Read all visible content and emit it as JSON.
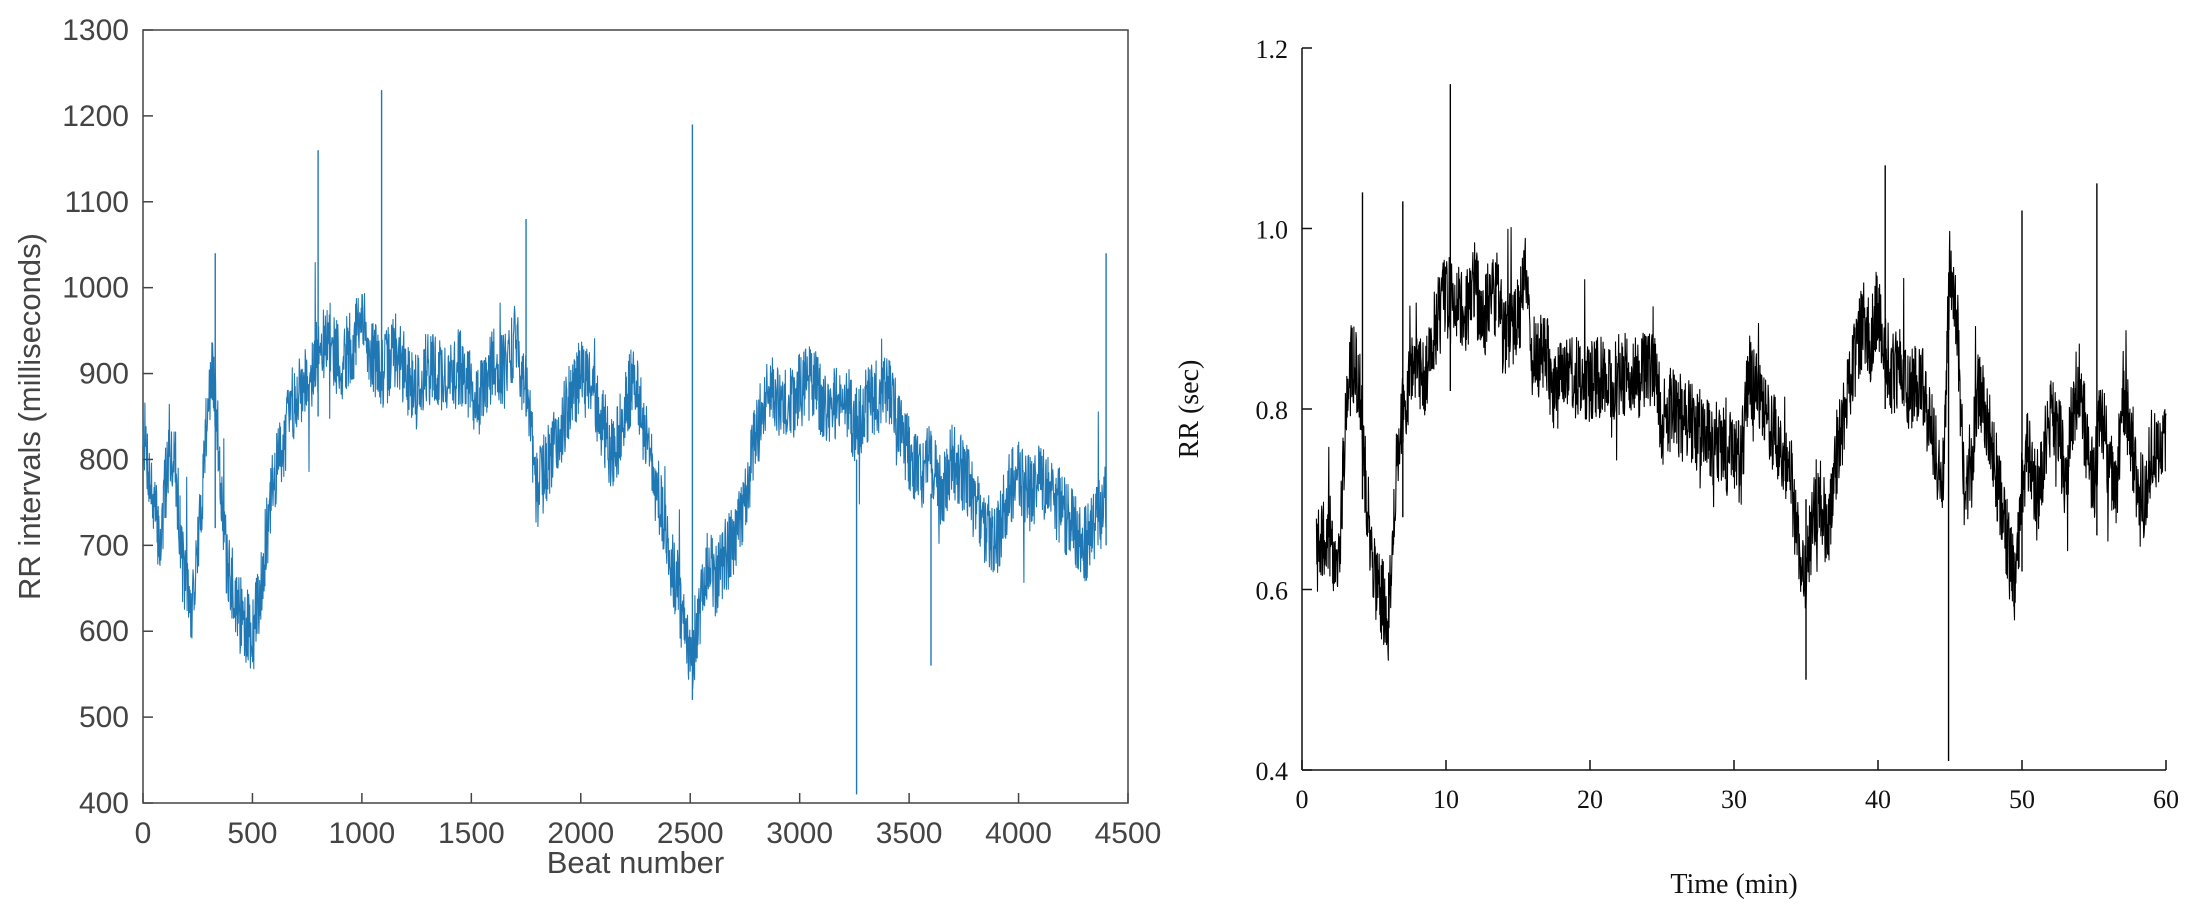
{
  "chart_data": [
    {
      "type": "line",
      "title": "",
      "xlabel": "Beat number",
      "ylabel": "RR intervals (milliseconds)",
      "xlim": [
        0,
        4500
      ],
      "ylim": [
        400,
        1300
      ],
      "xticks": [
        "0",
        "500",
        "1000",
        "1500",
        "2000",
        "2500",
        "3000",
        "3500",
        "4000",
        "4500"
      ],
      "yticks": [
        "400",
        "500",
        "600",
        "700",
        "800",
        "900",
        "1000",
        "1100",
        "1200",
        "1300"
      ],
      "grid": false,
      "line_color": "#1f77b4",
      "series": [
        {
          "x": [
            0,
            40,
            80,
            120,
            150,
            180,
            220,
            260,
            290,
            320,
            350,
            380,
            420,
            460,
            500,
            530,
            560,
            600,
            650,
            700,
            760,
            800,
            850,
            900,
            950,
            1000,
            1050,
            1100,
            1150,
            1200,
            1250,
            1300,
            1350,
            1400,
            1450,
            1500,
            1550,
            1600,
            1650,
            1700,
            1750,
            1800,
            1850,
            1900,
            1950,
            2000,
            2050,
            2100,
            2150,
            2200,
            2250,
            2300,
            2350,
            2400,
            2450,
            2480,
            2510,
            2540,
            2580,
            2620,
            2660,
            2700,
            2740,
            2780,
            2820,
            2860,
            2900,
            2950,
            3000,
            3050,
            3100,
            3150,
            3200,
            3250,
            3300,
            3350,
            3400,
            3450,
            3500,
            3550,
            3600,
            3650,
            3700,
            3750,
            3800,
            3850,
            3900,
            3950,
            4000,
            4050,
            4100,
            4150,
            4200,
            4250,
            4300,
            4350,
            4400
          ],
          "values": [
            840,
            760,
            700,
            820,
            790,
            680,
            620,
            720,
            850,
            900,
            800,
            680,
            640,
            610,
            590,
            640,
            700,
            780,
            830,
            880,
            900,
            920,
            940,
            910,
            930,
            960,
            920,
            900,
            930,
            900,
            880,
            910,
            900,
            890,
            910,
            880,
            870,
            920,
            900,
            940,
            880,
            760,
            800,
            830,
            870,
            900,
            880,
            840,
            800,
            860,
            900,
            820,
            760,
            700,
            640,
            580,
            560,
            610,
            680,
            660,
            690,
            700,
            740,
            800,
            850,
            880,
            870,
            860,
            880,
            890,
            870,
            860,
            880,
            840,
            860,
            870,
            880,
            840,
            810,
            780,
            800,
            760,
            800,
            780,
            750,
            720,
            700,
            760,
            780,
            760,
            780,
            760,
            740,
            720,
            700,
            720,
            760
          ]
        }
      ],
      "spikes": [
        {
          "x": 330,
          "values": [
            1040,
            720
          ]
        },
        {
          "x": 800,
          "values": [
            1160,
            850
          ]
        },
        {
          "x": 1090,
          "values": [
            1230,
            880
          ]
        },
        {
          "x": 1750,
          "values": [
            1080,
            850
          ]
        },
        {
          "x": 2510,
          "values": [
            1190,
            520
          ]
        },
        {
          "x": 3260,
          "values": [
            410,
            800
          ]
        },
        {
          "x": 3600,
          "values": [
            560,
            760
          ]
        },
        {
          "x": 4400,
          "values": [
            1040,
            700
          ]
        }
      ]
    },
    {
      "type": "line",
      "title": "",
      "xlabel": "Time (min)",
      "ylabel": "RR (sec)",
      "xlim": [
        0,
        60
      ],
      "ylim": [
        0.4,
        1.2
      ],
      "xticks": [
        "0",
        "10",
        "20",
        "30",
        "40",
        "50",
        "60"
      ],
      "yticks": [
        "0.4",
        "0.6",
        "0.8",
        "1.0",
        "1.2"
      ],
      "grid": false,
      "line_color": "#000000",
      "series": [
        {
          "x": [
            1.0,
            2.0,
            2.5,
            3.0,
            3.5,
            4.0,
            4.5,
            5.0,
            5.5,
            6.0,
            6.5,
            7.0,
            7.5,
            8.0,
            8.5,
            9.0,
            9.5,
            10.0,
            10.5,
            11.0,
            11.5,
            12.0,
            12.5,
            13.0,
            13.5,
            14.0,
            15.0,
            15.5,
            16.0,
            17.0,
            17.5,
            18.0,
            24.5,
            25.0,
            25.5,
            30.5,
            31.0,
            33.5,
            34.0,
            34.5,
            35.0,
            35.5,
            36.0,
            36.5,
            37.0,
            37.5,
            38.0,
            38.5,
            39.0,
            39.5,
            40.0,
            40.5,
            41.0,
            41.5,
            42.0,
            43.0,
            44.0,
            44.5,
            45.0,
            45.5,
            46.0,
            46.5,
            47.0,
            47.5,
            49.5,
            50.0,
            50.5,
            51.0,
            51.5,
            52.0,
            52.5,
            53.0,
            53.5,
            54.0,
            54.5,
            55.0,
            55.5,
            56.0,
            56.5,
            57.0,
            57.5,
            58.0,
            58.5,
            59.0,
            59.5,
            60.0
          ],
          "values": [
            0.64,
            0.66,
            0.62,
            0.78,
            0.86,
            0.82,
            0.7,
            0.62,
            0.59,
            0.58,
            0.72,
            0.8,
            0.84,
            0.86,
            0.82,
            0.88,
            0.9,
            0.93,
            0.91,
            0.92,
            0.9,
            0.94,
            0.89,
            0.92,
            0.93,
            0.88,
            0.9,
            0.95,
            0.86,
            0.86,
            0.82,
            0.83,
            0.84,
            0.78,
            0.8,
            0.74,
            0.84,
            0.75,
            0.72,
            0.64,
            0.62,
            0.68,
            0.7,
            0.66,
            0.74,
            0.78,
            0.82,
            0.86,
            0.9,
            0.88,
            0.92,
            0.86,
            0.84,
            0.85,
            0.82,
            0.83,
            0.75,
            0.72,
            0.96,
            0.9,
            0.7,
            0.75,
            0.83,
            0.8,
            0.6,
            0.72,
            0.76,
            0.7,
            0.75,
            0.8,
            0.78,
            0.72,
            0.79,
            0.83,
            0.76,
            0.72,
            0.8,
            0.74,
            0.7,
            0.82,
            0.78,
            0.72,
            0.7,
            0.76,
            0.74,
            0.76
          ]
        }
      ],
      "spikes": [
        {
          "x": 4.2,
          "values": [
            1.04,
            0.7
          ]
        },
        {
          "x": 7.0,
          "values": [
            1.03,
            0.68
          ]
        },
        {
          "x": 10.3,
          "values": [
            1.16,
            0.82
          ]
        },
        {
          "x": 35.0,
          "values": [
            0.5,
            0.7
          ]
        },
        {
          "x": 40.5,
          "values": [
            1.07,
            0.8
          ]
        },
        {
          "x": 44.9,
          "values": [
            0.41,
            0.9
          ]
        },
        {
          "x": 50.0,
          "values": [
            1.02,
            0.62
          ]
        },
        {
          "x": 55.2,
          "values": [
            1.05,
            0.66
          ]
        }
      ]
    }
  ]
}
